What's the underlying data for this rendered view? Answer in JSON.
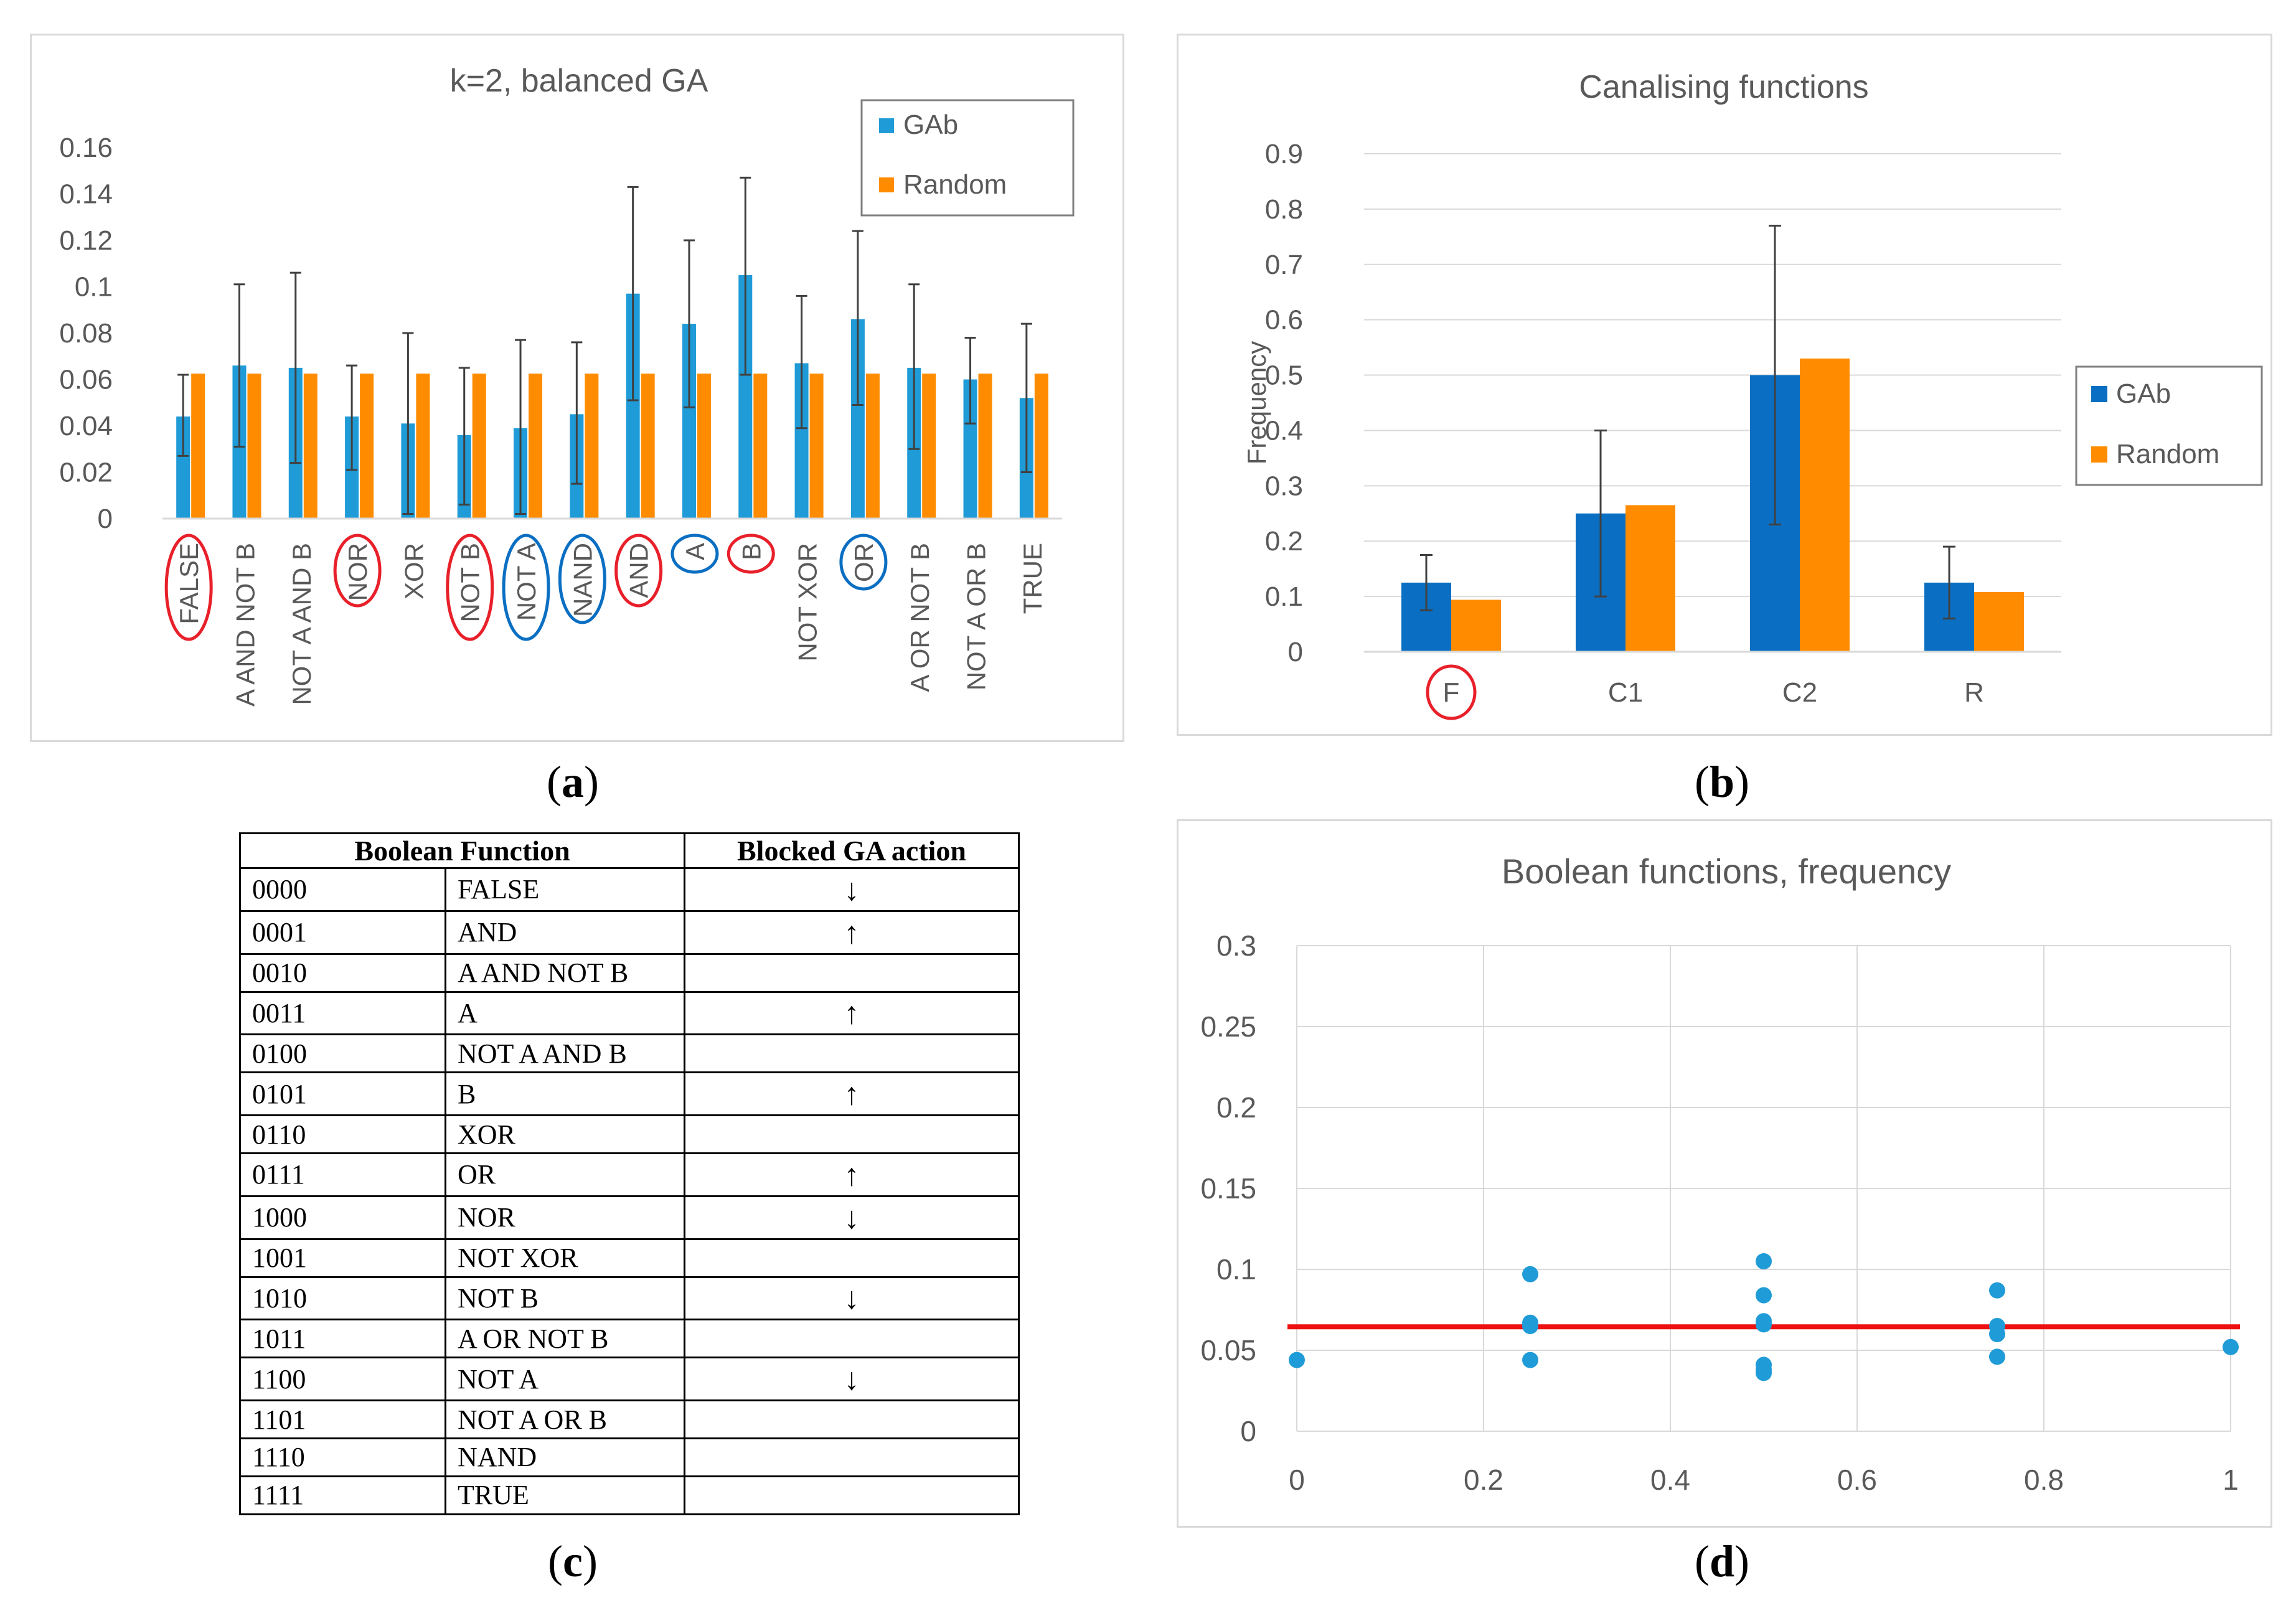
{
  "panels": {
    "a": {
      "label": "a"
    },
    "b": {
      "label": "b"
    },
    "c": {
      "label": "c"
    },
    "d": {
      "label": "d"
    }
  },
  "colors": {
    "gab_a": "#1f9bd7",
    "gab_b": "#0a6fc2",
    "random": "#ff8c00",
    "red_circle": "#e8202a",
    "blue_circle": "#0a6fc2",
    "threshold": "#ee1111",
    "grid": "#d9d9d9",
    "error_bar": "#404040"
  },
  "chart_data": [
    {
      "id": "a",
      "type": "bar",
      "title": "k=2, balanced GA",
      "categories": [
        "FALSE",
        "A AND NOT B",
        "NOT A AND B",
        "NOR",
        "XOR",
        "NOT B",
        "NOT A",
        "NAND",
        "AND",
        "A",
        "B",
        "NOT XOR",
        "OR",
        "A OR NOT B",
        "NOT A OR B",
        "TRUE"
      ],
      "series": [
        {
          "name": "GAb",
          "values": [
            0.044,
            0.066,
            0.065,
            0.044,
            0.041,
            0.036,
            0.039,
            0.045,
            0.097,
            0.084,
            0.105,
            0.067,
            0.086,
            0.065,
            0.06,
            0.052
          ],
          "error_low": [
            0.027,
            0.031,
            0.024,
            0.021,
            0.002,
            0.006,
            0.002,
            0.015,
            0.051,
            0.048,
            0.062,
            0.039,
            0.049,
            0.03,
            0.041,
            0.02
          ],
          "error_high": [
            0.062,
            0.101,
            0.106,
            0.066,
            0.08,
            0.065,
            0.077,
            0.076,
            0.143,
            0.12,
            0.147,
            0.096,
            0.124,
            0.101,
            0.078,
            0.084
          ]
        },
        {
          "name": "Random",
          "values": [
            0.0625,
            0.0625,
            0.0625,
            0.0625,
            0.0625,
            0.0625,
            0.0625,
            0.0625,
            0.0625,
            0.0625,
            0.0625,
            0.0625,
            0.0625,
            0.0625,
            0.0625,
            0.0625
          ]
        }
      ],
      "yticks": [
        "0",
        "0.02",
        "0.04",
        "0.06",
        "0.08",
        "0.1",
        "0.12",
        "0.14",
        "0.16"
      ],
      "ylim": [
        0,
        0.16
      ],
      "legend": "top-right",
      "red_circled": [
        "FALSE",
        "NOR",
        "NOT B",
        "AND",
        "B"
      ],
      "blue_circled": [
        "NOT A",
        "NAND",
        "A",
        "OR"
      ]
    },
    {
      "id": "b",
      "type": "bar",
      "title": "Canalising functions",
      "ylabel": "Frequency",
      "categories": [
        "F",
        "C1",
        "C2",
        "R"
      ],
      "series": [
        {
          "name": "GAb",
          "values": [
            0.125,
            0.25,
            0.5,
            0.125
          ],
          "error_low": [
            0.075,
            0.1,
            0.23,
            0.06
          ],
          "error_high": [
            0.175,
            0.4,
            0.77,
            0.19
          ]
        },
        {
          "name": "Random",
          "values": [
            0.094,
            0.265,
            0.53,
            0.108
          ]
        }
      ],
      "yticks": [
        "0",
        "0.1",
        "0.2",
        "0.3",
        "0.4",
        "0.5",
        "0.6",
        "0.7",
        "0.8",
        "0.9"
      ],
      "ylim": [
        0,
        0.9
      ],
      "legend": "right",
      "red_circled": [
        "F"
      ]
    },
    {
      "id": "d",
      "type": "scatter",
      "title": "Boolean functions, frequency",
      "points": [
        {
          "x": 0,
          "y": 0.044
        },
        {
          "x": 0.25,
          "y": 0.097
        },
        {
          "x": 0.25,
          "y": 0.067
        },
        {
          "x": 0.25,
          "y": 0.065
        },
        {
          "x": 0.25,
          "y": 0.044
        },
        {
          "x": 0.5,
          "y": 0.105
        },
        {
          "x": 0.5,
          "y": 0.084
        },
        {
          "x": 0.5,
          "y": 0.068
        },
        {
          "x": 0.5,
          "y": 0.066
        },
        {
          "x": 0.5,
          "y": 0.041
        },
        {
          "x": 0.5,
          "y": 0.038
        },
        {
          "x": 0.5,
          "y": 0.036
        },
        {
          "x": 0.75,
          "y": 0.087
        },
        {
          "x": 0.75,
          "y": 0.065
        },
        {
          "x": 0.75,
          "y": 0.06
        },
        {
          "x": 0.75,
          "y": 0.046
        },
        {
          "x": 1,
          "y": 0.052
        }
      ],
      "threshold_y": 0.0645,
      "xticks": [
        "0",
        "0.2",
        "0.4",
        "0.6",
        "0.8",
        "1"
      ],
      "yticks": [
        "0",
        "0.05",
        "0.1",
        "0.15",
        "0.2",
        "0.25",
        "0.3"
      ],
      "xlim": [
        0,
        1
      ],
      "ylim": [
        0,
        0.3
      ]
    }
  ],
  "table": {
    "headers": [
      "Boolean Function",
      "Blocked GA action"
    ],
    "rows": [
      {
        "code": "0000",
        "name": "FALSE",
        "action": "↓"
      },
      {
        "code": "0001",
        "name": "AND",
        "action": "↑"
      },
      {
        "code": "0010",
        "name": "A AND NOT B",
        "action": ""
      },
      {
        "code": "0011",
        "name": "A",
        "action": "↑"
      },
      {
        "code": "0100",
        "name": "NOT A AND B",
        "action": ""
      },
      {
        "code": "0101",
        "name": "B",
        "action": "↑"
      },
      {
        "code": "0110",
        "name": "XOR",
        "action": ""
      },
      {
        "code": "0111",
        "name": "OR",
        "action": "↑"
      },
      {
        "code": "1000",
        "name": "NOR",
        "action": "↓"
      },
      {
        "code": "1001",
        "name": "NOT XOR",
        "action": ""
      },
      {
        "code": "1010",
        "name": "NOT B",
        "action": "↓"
      },
      {
        "code": "1011",
        "name": "A OR NOT B",
        "action": ""
      },
      {
        "code": "1100",
        "name": "NOT A",
        "action": "↓"
      },
      {
        "code": "1101",
        "name": "NOT A OR B",
        "action": ""
      },
      {
        "code": "1110",
        "name": "NAND",
        "action": ""
      },
      {
        "code": "1111",
        "name": "TRUE",
        "action": ""
      }
    ]
  }
}
